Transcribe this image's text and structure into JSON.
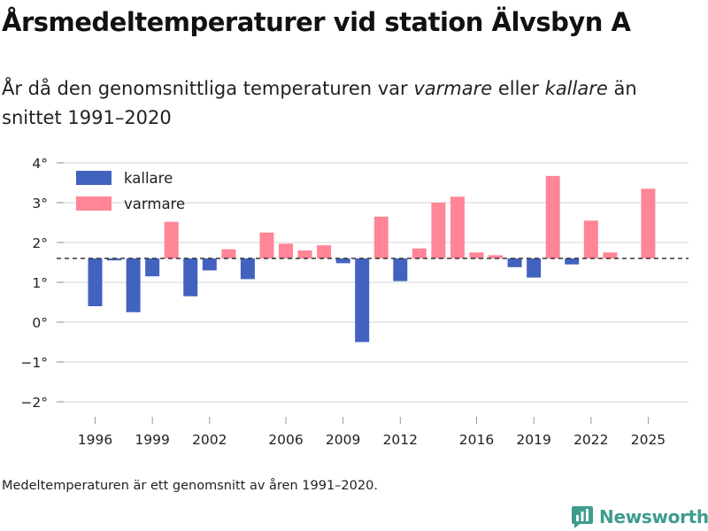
{
  "header": {
    "title": "Årsmedeltemperaturer vid station Älvsbyn A",
    "subtitle_pre": "År då den genomsnittliga temperaturen var ",
    "subtitle_warm": "varmare",
    "subtitle_mid": " eller ",
    "subtitle_cold": "kallare",
    "subtitle_post": " än snittet 1991–2020"
  },
  "footnote": "Medeltemperaturen är ett genomsnitt av åren 1991–2020.",
  "brand": {
    "name": "Newsworthy",
    "icon": "newsworthy-logo-icon",
    "color": "#3e9c8e"
  },
  "chart_data": {
    "type": "bar",
    "title": "Årsmedeltemperaturer vid station Älvsbyn A",
    "xlabel": "",
    "ylabel": "",
    "baseline": 1.6,
    "baseline_style": "dashed",
    "ylim": [
      -2.2,
      4.2
    ],
    "yticks": [
      4,
      3,
      2,
      1,
      0,
      -1,
      -2
    ],
    "ytick_labels": [
      "4°",
      "3°",
      "2°",
      "1°",
      "0°",
      "−1°",
      "−2°"
    ],
    "xlim": [
      1993.9,
      2026.9
    ],
    "xticks": [
      1996,
      1999,
      2002,
      2006,
      2009,
      2012,
      2016,
      2019,
      2022,
      2025
    ],
    "xtick_labels": [
      "1996",
      "1999",
      "2002",
      "2006",
      "2009",
      "2012",
      "2016",
      "2019",
      "2022",
      "2025"
    ],
    "legend": {
      "position": "top-left",
      "entries": [
        {
          "label": "kallare",
          "color": "#4262bf"
        },
        {
          "label": "varmare",
          "color": "#ff8597"
        }
      ]
    },
    "colors": {
      "kallare": "#4262bf",
      "varmare": "#ff8597"
    },
    "grid": true,
    "years": [
      1996,
      1997,
      1998,
      1999,
      2000,
      2001,
      2002,
      2003,
      2004,
      2005,
      2006,
      2007,
      2008,
      2009,
      2010,
      2011,
      2012,
      2013,
      2014,
      2015,
      2016,
      2017,
      2018,
      2019,
      2020,
      2021,
      2022,
      2023,
      2025
    ],
    "values": [
      0.4,
      1.55,
      0.25,
      1.15,
      2.52,
      0.65,
      1.3,
      1.83,
      1.08,
      2.25,
      1.97,
      1.8,
      1.93,
      1.48,
      -0.5,
      2.65,
      1.03,
      1.85,
      3.0,
      3.15,
      1.75,
      1.68,
      1.38,
      1.12,
      3.67,
      1.45,
      2.55,
      1.75,
      3.35
    ]
  }
}
